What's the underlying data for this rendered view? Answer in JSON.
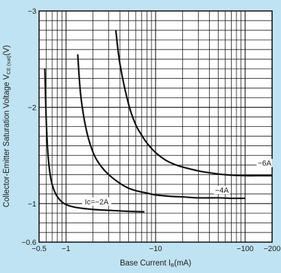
{
  "chart_data": {
    "type": "line",
    "title": "",
    "xlabel": "Base Current IB(mA)",
    "xlabel_main": "Base Current I",
    "xlabel_sub": "B",
    "xlabel_unit": "(mA)",
    "ylabel_main": "Collector-Emitter Saturation Voltage V",
    "ylabel_sub": "CE (sat)",
    "ylabel_unit": "(V)",
    "x_scale": "log",
    "y_scale": "linear",
    "xlim": [
      0.5,
      200
    ],
    "ylim": [
      -0.6,
      -3
    ],
    "grid": true,
    "x_ticks": [
      {
        "value": 0.5,
        "label": "−0.5"
      },
      {
        "value": 1,
        "label": "−1"
      },
      {
        "value": 10,
        "label": "−10"
      },
      {
        "value": 100,
        "label": "−100"
      },
      {
        "value": 200,
        "label": "−200"
      }
    ],
    "y_ticks": [
      {
        "value": -0.6,
        "label": "−0.6"
      },
      {
        "value": -1,
        "label": "−1"
      },
      {
        "value": -2,
        "label": "−2"
      },
      {
        "value": -3,
        "label": "−3"
      }
    ],
    "series": [
      {
        "name": "Ic=−2A",
        "label_at": [
          2.2,
          -1.0
        ],
        "x": [
          0.58,
          0.6,
          0.63,
          0.68,
          0.75,
          0.85,
          1.0,
          1.3,
          2,
          3,
          5,
          7.5
        ],
        "y": [
          -2.4,
          -1.9,
          -1.5,
          -1.25,
          -1.12,
          -1.04,
          -0.99,
          -0.96,
          -0.94,
          -0.93,
          -0.92,
          -0.915
        ]
      },
      {
        "name": "−4A",
        "label_at": [
          55,
          -1.12
        ],
        "x": [
          1.35,
          1.45,
          1.6,
          1.8,
          2.1,
          2.5,
          3,
          4,
          5,
          6.3,
          8,
          10,
          15,
          20,
          30,
          50,
          70,
          100
        ],
        "y": [
          -2.55,
          -2.15,
          -1.87,
          -1.66,
          -1.49,
          -1.38,
          -1.3,
          -1.21,
          -1.16,
          -1.13,
          -1.11,
          -1.09,
          -1.075,
          -1.07,
          -1.06,
          -1.06,
          -1.055,
          -1.055
        ]
      },
      {
        "name": "−6A",
        "label_at": [
          165,
          -1.4
        ],
        "x": [
          3.6,
          4,
          5,
          6,
          7,
          8,
          10,
          13,
          16,
          20,
          30,
          40,
          60,
          100,
          150,
          200
        ],
        "y": [
          -2.8,
          -2.45,
          -2.03,
          -1.82,
          -1.71,
          -1.63,
          -1.53,
          -1.45,
          -1.41,
          -1.38,
          -1.34,
          -1.32,
          -1.3,
          -1.29,
          -1.29,
          -1.29
        ]
      }
    ]
  }
}
